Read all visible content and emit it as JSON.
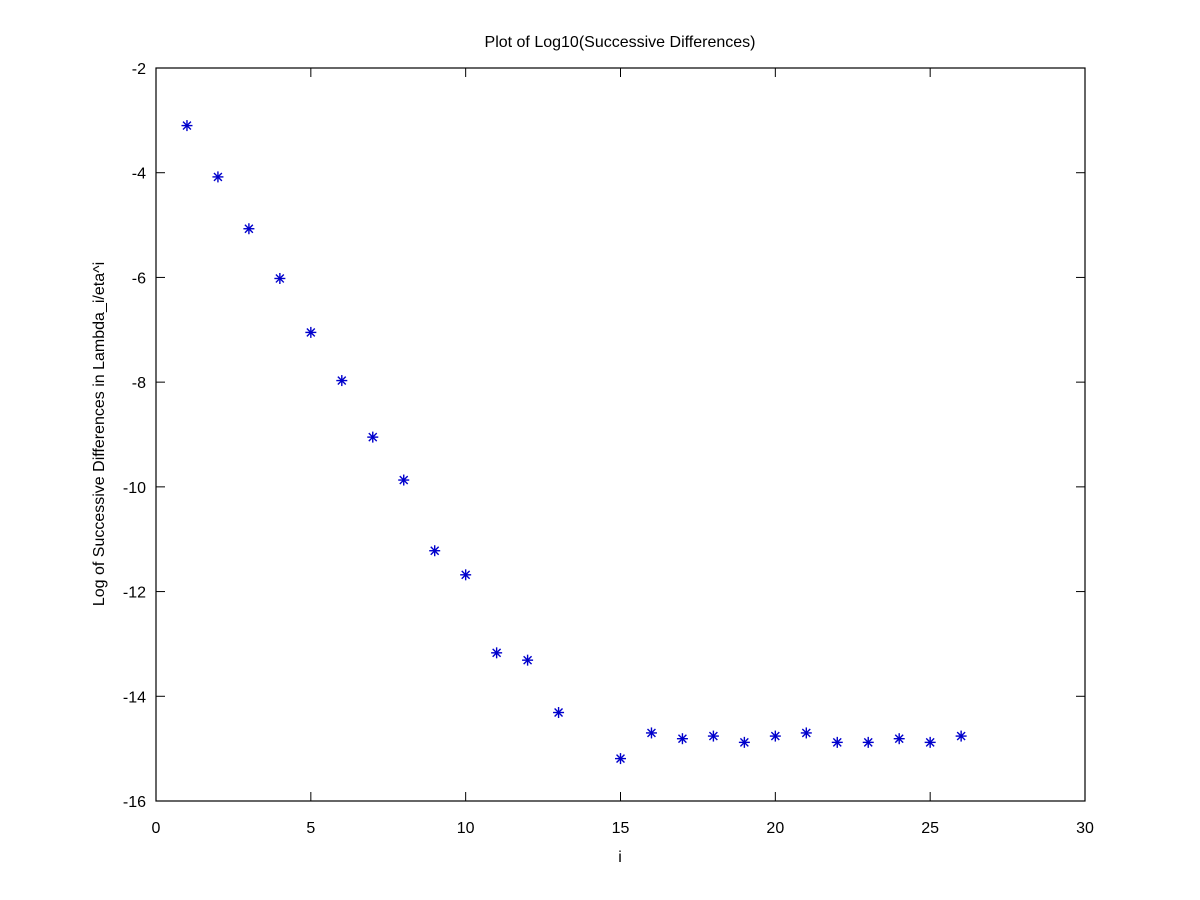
{
  "chart_data": {
    "type": "scatter",
    "title": "Plot of Log10(Successive Differences)",
    "xlabel": "i",
    "ylabel": "Log of Successive Differences in Lambda_i/eta^i",
    "xlim": [
      0,
      30
    ],
    "ylim": [
      -16,
      -2
    ],
    "xticks": [
      0,
      5,
      10,
      15,
      20,
      25,
      30
    ],
    "yticks": [
      -16,
      -14,
      -12,
      -10,
      -8,
      -6,
      -4,
      -2
    ],
    "grid": false,
    "marker": "asterisk",
    "series": [
      {
        "color": "#0000cc",
        "x": [
          1,
          2,
          3,
          4,
          5,
          6,
          7,
          8,
          9,
          10,
          11,
          12,
          13,
          15,
          16,
          17,
          18,
          19,
          20,
          21,
          22,
          23,
          24,
          25,
          26
        ],
        "y": [
          -3.1,
          -4.08,
          -5.07,
          -6.02,
          -7.05,
          -7.97,
          -9.05,
          -9.87,
          -11.22,
          -11.68,
          -13.17,
          -13.31,
          -14.31,
          -15.19,
          -14.7,
          -14.81,
          -14.76,
          -14.88,
          -14.76,
          -14.7,
          -14.88,
          -14.88,
          -14.81,
          -14.88,
          -14.76
        ]
      }
    ]
  }
}
